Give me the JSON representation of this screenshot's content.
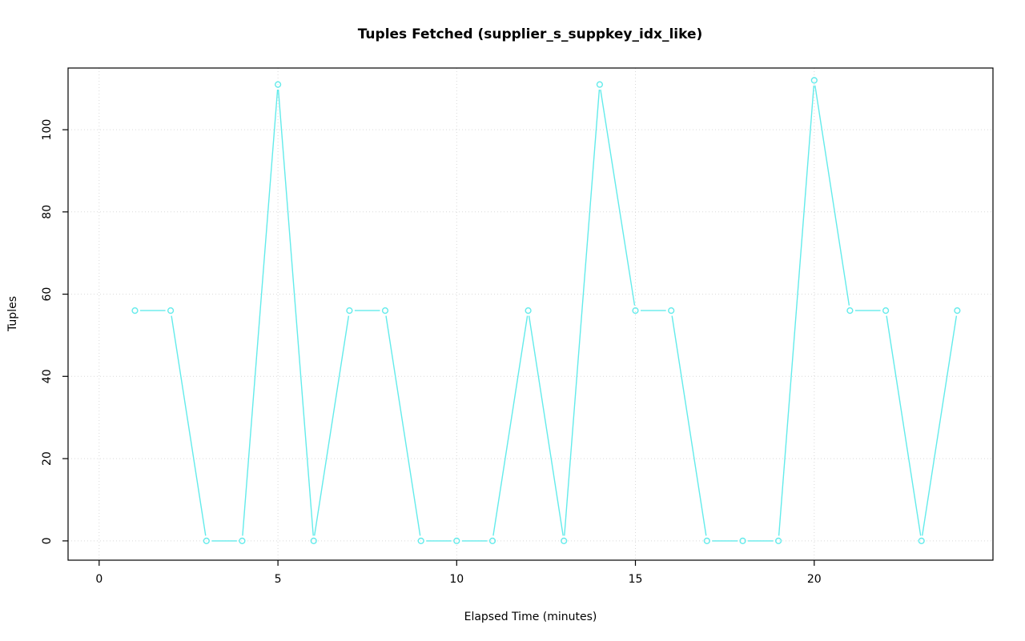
{
  "chart_data": {
    "type": "line",
    "title": "Tuples Fetched (supplier_s_suppkey_idx_like)",
    "xlabel": "Elapsed Time (minutes)",
    "ylabel": "Tuples",
    "x": [
      1,
      2,
      3,
      4,
      5,
      6,
      7,
      8,
      9,
      10,
      11,
      12,
      13,
      14,
      15,
      16,
      17,
      18,
      19,
      20,
      21,
      22,
      23,
      24
    ],
    "y": [
      56,
      56,
      0,
      0,
      111,
      0,
      56,
      56,
      0,
      0,
      0,
      56,
      0,
      111,
      56,
      56,
      0,
      0,
      0,
      112,
      56,
      56,
      0,
      56
    ],
    "x_ticks": [
      0,
      5,
      10,
      15,
      20
    ],
    "y_ticks": [
      0,
      20,
      40,
      60,
      80,
      100
    ],
    "xlim": [
      -0.87,
      25.0
    ],
    "ylim": [
      -4.7,
      115.0
    ],
    "line_color": "#63ebeb",
    "point_color": "#63ebeb",
    "grid_color": "#d9d9d9",
    "box_color": "#000000",
    "grid_style": "dotted",
    "legend": "none",
    "marker": "open-circle",
    "line_type": "points-and-segments"
  }
}
